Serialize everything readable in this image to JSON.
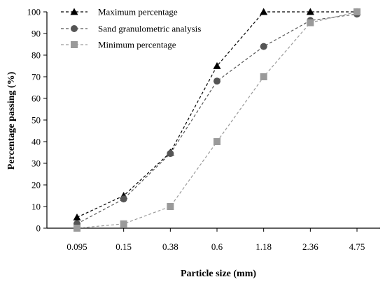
{
  "chart_data": {
    "type": "line",
    "xlabel": "Particle size (mm)",
    "ylabel": "Percentage passing (%)",
    "categories": [
      "0.095",
      "0.15",
      "0.38",
      "0.6",
      "1.18",
      "2.36",
      "4.75"
    ],
    "ylim": [
      0,
      100
    ],
    "yticks": [
      0,
      10,
      20,
      30,
      40,
      50,
      60,
      70,
      80,
      90,
      100
    ],
    "grid": false,
    "legend_position": "top-left",
    "series": [
      {
        "name": "Maximum percentage",
        "marker": "triangle",
        "color": "#000000",
        "values": [
          5,
          15,
          35,
          75,
          100,
          100,
          100
        ]
      },
      {
        "name": "Sand granulometric analysis",
        "marker": "circle",
        "color": "#555555",
        "values": [
          2,
          13.5,
          34.5,
          68,
          84,
          96,
          99
        ]
      },
      {
        "name": "Minimum percentage",
        "marker": "square",
        "color": "#9a9a9a",
        "values": [
          0,
          2,
          10,
          40,
          70,
          95,
          100
        ]
      }
    ]
  }
}
